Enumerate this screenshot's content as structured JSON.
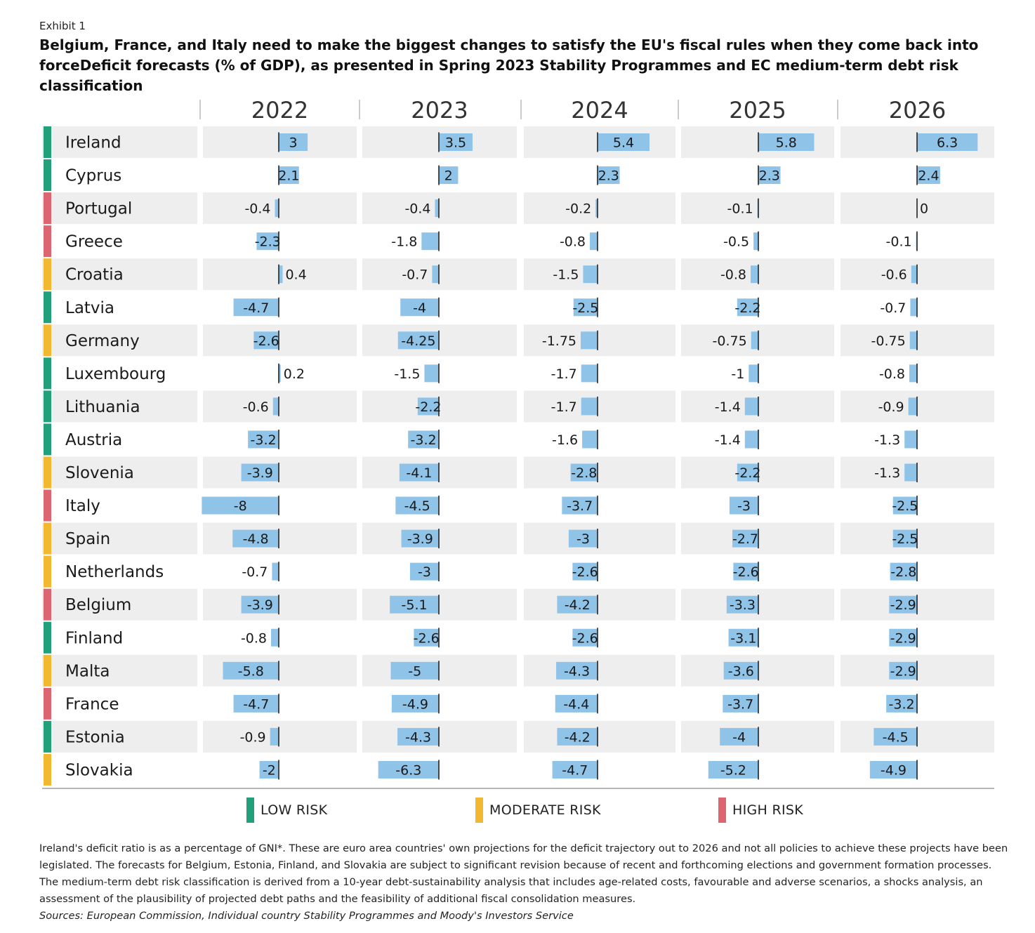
{
  "exhibit_label": "Exhibit 1",
  "chart_data": {
    "type": "bar",
    "title": "Belgium, France, and Italy need to make the biggest changes to satisfy the EU's fiscal rules when they come back into forceDeficit forecasts (% of GDP), as presented in Spring 2023 Stability Programmes and EC medium-term debt risk classification",
    "years": [
      "2022",
      "2023",
      "2024",
      "2025",
      "2026"
    ],
    "xlim": [
      -8,
      8
    ],
    "risk_colors": {
      "low": "#22a07c",
      "moderate": "#f2b830",
      "high": "#dd6471"
    },
    "bar_color": "#8fc3e8",
    "countries": [
      {
        "name": "Ireland",
        "risk": "low",
        "values": [
          3,
          3.5,
          5.4,
          5.8,
          6.3
        ],
        "labels": [
          "3",
          "3.5",
          "5.4",
          "5.8",
          "6.3"
        ]
      },
      {
        "name": "Cyprus",
        "risk": "low",
        "values": [
          2.1,
          2,
          2.3,
          2.3,
          2.4
        ],
        "labels": [
          "2.1",
          "2",
          "2.3",
          "2.3",
          "2.4"
        ]
      },
      {
        "name": "Portugal",
        "risk": "high",
        "values": [
          -0.4,
          -0.4,
          -0.2,
          -0.1,
          0
        ],
        "labels": [
          "-0.4",
          "-0.4",
          "-0.2",
          "-0.1",
          "0"
        ]
      },
      {
        "name": "Greece",
        "risk": "high",
        "values": [
          -2.3,
          -1.8,
          -0.8,
          -0.5,
          -0.1
        ],
        "labels": [
          "-2.3",
          "-1.8",
          "-0.8",
          "-0.5",
          "-0.1"
        ]
      },
      {
        "name": "Croatia",
        "risk": "moderate",
        "values": [
          0.4,
          -0.7,
          -1.5,
          -0.8,
          -0.6
        ],
        "labels": [
          "0.4",
          "-0.7",
          "-1.5",
          "-0.8",
          "-0.6"
        ]
      },
      {
        "name": "Latvia",
        "risk": "low",
        "values": [
          -4.7,
          -4,
          -2.5,
          -2.2,
          -0.7
        ],
        "labels": [
          "-4.7",
          "-4",
          "-2.5",
          "-2.2",
          "-0.7"
        ]
      },
      {
        "name": "Germany",
        "risk": "moderate",
        "values": [
          -2.6,
          -4.25,
          -1.75,
          -0.75,
          -0.75
        ],
        "labels": [
          "-2.6",
          "-4.25",
          "-1.75",
          "-0.75",
          "-0.75"
        ]
      },
      {
        "name": "Luxembourg",
        "risk": "low",
        "values": [
          0.2,
          -1.5,
          -1.7,
          -1,
          -0.8
        ],
        "labels": [
          "0.2",
          "-1.5",
          "-1.7",
          "-1",
          "-0.8"
        ]
      },
      {
        "name": "Lithuania",
        "risk": "low",
        "values": [
          -0.6,
          -2.2,
          -1.7,
          -1.4,
          -0.9
        ],
        "labels": [
          "-0.6",
          "-2.2",
          "-1.7",
          "-1.4",
          "-0.9"
        ]
      },
      {
        "name": "Austria",
        "risk": "low",
        "values": [
          -3.2,
          -3.2,
          -1.6,
          -1.4,
          -1.3
        ],
        "labels": [
          "-3.2",
          "-3.2",
          "-1.6",
          "-1.4",
          "-1.3"
        ]
      },
      {
        "name": "Slovenia",
        "risk": "moderate",
        "values": [
          -3.9,
          -4.1,
          -2.8,
          -2.2,
          -1.3
        ],
        "labels": [
          "-3.9",
          "-4.1",
          "-2.8",
          "-2.2",
          "-1.3"
        ]
      },
      {
        "name": "Italy",
        "risk": "high",
        "values": [
          -8,
          -4.5,
          -3.7,
          -3,
          -2.5
        ],
        "labels": [
          "-8",
          "-4.5",
          "-3.7",
          "-3",
          "-2.5"
        ]
      },
      {
        "name": "Spain",
        "risk": "moderate",
        "values": [
          -4.8,
          -3.9,
          -3,
          -2.7,
          -2.5
        ],
        "labels": [
          "-4.8",
          "-3.9",
          "-3",
          "-2.7",
          "-2.5"
        ]
      },
      {
        "name": "Netherlands",
        "risk": "moderate",
        "values": [
          -0.7,
          -3,
          -2.6,
          -2.6,
          -2.8
        ],
        "labels": [
          "-0.7",
          "-3",
          "-2.6",
          "-2.6",
          "-2.8"
        ]
      },
      {
        "name": "Belgium",
        "risk": "high",
        "values": [
          -3.9,
          -5.1,
          -4.2,
          -3.3,
          -2.9
        ],
        "labels": [
          "-3.9",
          "-5.1",
          "-4.2",
          "-3.3",
          "-2.9"
        ]
      },
      {
        "name": "Finland",
        "risk": "low",
        "values": [
          -0.8,
          -2.6,
          -2.6,
          -3.1,
          -2.9
        ],
        "labels": [
          "-0.8",
          "-2.6",
          "-2.6",
          "-3.1",
          "-2.9"
        ]
      },
      {
        "name": "Malta",
        "risk": "moderate",
        "values": [
          -5.8,
          -5,
          -4.3,
          -3.6,
          -2.9
        ],
        "labels": [
          "-5.8",
          "-5",
          "-4.3",
          "-3.6",
          "-2.9"
        ]
      },
      {
        "name": "France",
        "risk": "high",
        "values": [
          -4.7,
          -4.9,
          -4.4,
          -3.7,
          -3.2
        ],
        "labels": [
          "-4.7",
          "-4.9",
          "-4.4",
          "-3.7",
          "-3.2"
        ]
      },
      {
        "name": "Estonia",
        "risk": "low",
        "values": [
          -0.9,
          -4.3,
          -4.2,
          -4,
          -4.5
        ],
        "labels": [
          "-0.9",
          "-4.3",
          "-4.2",
          "-4",
          "-4.5"
        ]
      },
      {
        "name": "Slovakia",
        "risk": "moderate",
        "values": [
          -2,
          -6.3,
          -4.7,
          -5.2,
          -4.9
        ],
        "labels": [
          "-2",
          "-6.3",
          "-4.7",
          "-5.2",
          "-4.9"
        ]
      }
    ],
    "legend": [
      {
        "label": "LOW RISK",
        "risk": "low"
      },
      {
        "label": "MODERATE RISK",
        "risk": "moderate"
      },
      {
        "label": "HIGH RISK",
        "risk": "high"
      }
    ]
  },
  "notes": "Ireland's deficit ratio is as a percentage of GNI*. These are euro area countries' own projections for the deficit trajectory out to 2026 and not all policies to achieve these projects have been legislated. The forecasts for Belgium, Estonia, Finland, and Slovakia are subject to significant revision because of recent and forthcoming elections and government formation processes. The medium-term debt risk classification is derived from a 10-year debt-sustainability analysis that includes age-related costs, favourable and adverse scenarios, a shocks analysis, an assessment of the plausibility of projected debt paths and the feasibility of additional fiscal consolidation measures.",
  "sources": "Sources: European Commission, Individual country Stability Programmes and Moody's Investors Service"
}
